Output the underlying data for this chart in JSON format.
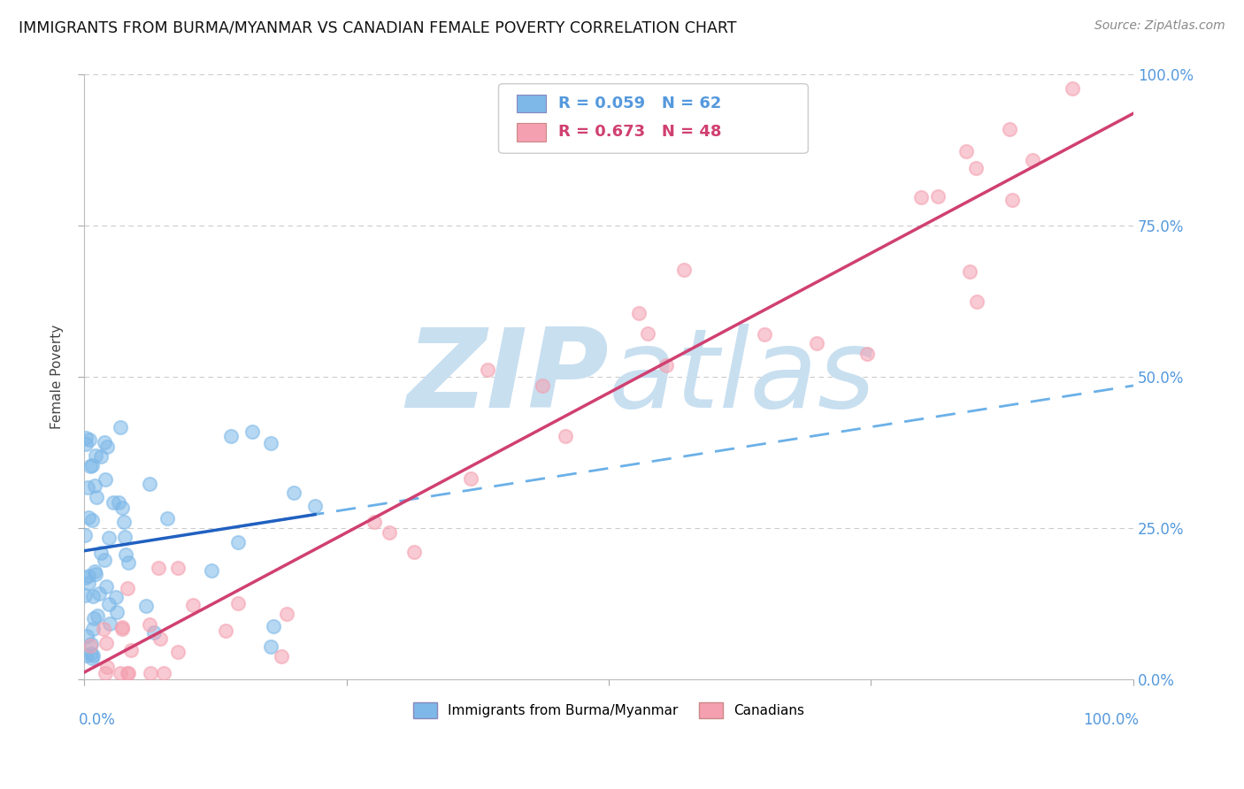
{
  "title": "IMMIGRANTS FROM BURMA/MYANMAR VS CANADIAN FEMALE POVERTY CORRELATION CHART",
  "source": "Source: ZipAtlas.com",
  "legend_label1": "Immigrants from Burma/Myanmar",
  "legend_label2": "Canadians",
  "R1": 0.059,
  "N1": 62,
  "R2": 0.673,
  "N2": 48,
  "color1": "#7db8e8",
  "color2": "#f4a0b0",
  "trendline1_solid_color": "#2060c0",
  "trendline1_dash_color": "#6ab0e8",
  "trendline2_color": "#d04070",
  "watermark_zip": "ZIP",
  "watermark_atlas": "atlas",
  "watermark_color": "#c8dff0",
  "background_color": "#ffffff",
  "grid_color": "#cccccc",
  "right_tick_color": "#5599dd",
  "ylabel": "Female Poverty",
  "xlim": [
    0.0,
    1.0
  ],
  "ylim": [
    0.0,
    1.0
  ]
}
